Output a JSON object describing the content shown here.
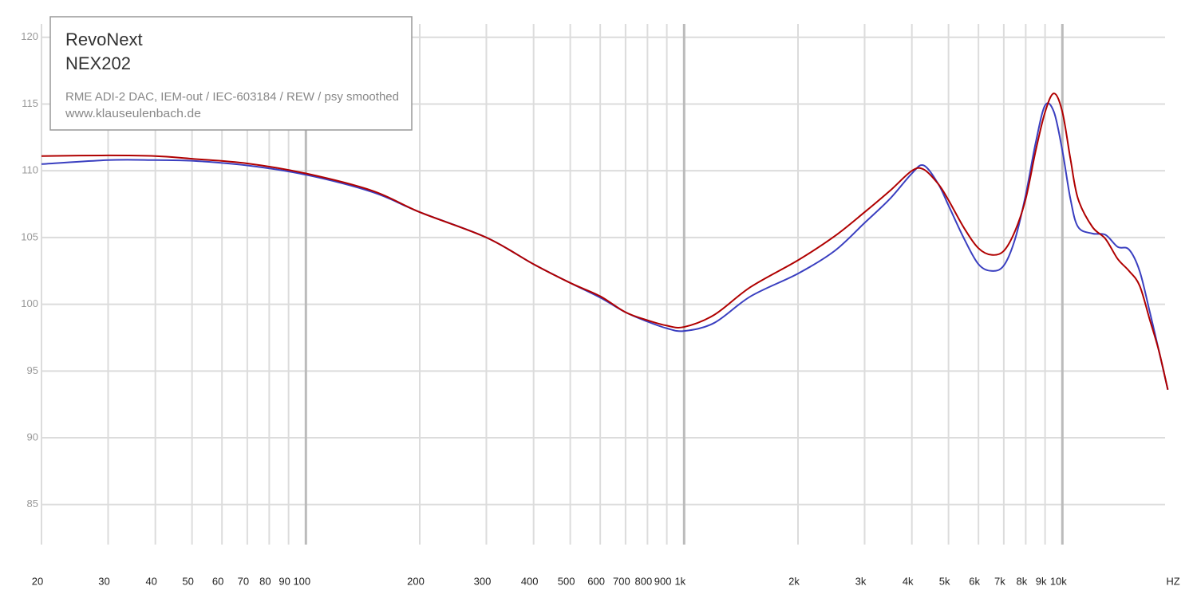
{
  "chart_data": {
    "type": "line",
    "title": "RevoNext",
    "subtitle": "NEX202",
    "annotations": [
      "RME ADI-2 DAC, IEM-out / IEC-603184 / REW / psy smoothed",
      "www.klauseulenbach.de"
    ],
    "x_label": "HZ",
    "log_x": true,
    "grid": true,
    "xlim": [
      20,
      20000
    ],
    "ylim": [
      82,
      121
    ],
    "xticks": [
      20,
      30,
      40,
      50,
      60,
      70,
      80,
      90,
      100,
      200,
      300,
      400,
      500,
      600,
      700,
      800,
      900,
      {
        "value": 1000,
        "label": "1k"
      },
      {
        "value": 2000,
        "label": "2k"
      },
      {
        "value": 3000,
        "label": "3k"
      },
      {
        "value": 4000,
        "label": "4k"
      },
      {
        "value": 5000,
        "label": "5k"
      },
      {
        "value": 6000,
        "label": "6k"
      },
      {
        "value": 7000,
        "label": "7k"
      },
      {
        "value": 8000,
        "label": "8k"
      },
      {
        "value": 9000,
        "label": "9k"
      },
      {
        "value": 10000,
        "label": "10k"
      }
    ],
    "yticks": [
      85,
      90,
      95,
      100,
      105,
      110,
      115,
      120
    ],
    "x": [
      20,
      30,
      40,
      50,
      70,
      100,
      150,
      200,
      300,
      400,
      500,
      600,
      700,
      800,
      900,
      1000,
      1200,
      1500,
      2000,
      2500,
      3000,
      3500,
      4000,
      4300,
      4700,
      5000,
      5500,
      6000,
      6500,
      7000,
      7500,
      8000,
      8500,
      9000,
      9500,
      10000,
      10500,
      11000,
      12000,
      13000,
      14000,
      15000,
      16000,
      17000,
      18000,
      19000
    ],
    "series": [
      {
        "color": "#3a3fc0",
        "values": [
          110.5,
          110.8,
          110.8,
          110.75,
          110.4,
          109.7,
          108.4,
          106.9,
          105.0,
          103.0,
          101.6,
          100.5,
          99.4,
          98.7,
          98.2,
          98.0,
          98.6,
          100.6,
          102.3,
          104.0,
          106.1,
          107.9,
          109.8,
          110.4,
          109.0,
          107.4,
          104.9,
          103.0,
          102.5,
          102.9,
          104.9,
          108.2,
          112.1,
          114.9,
          114.4,
          111.5,
          107.9,
          105.8,
          105.3,
          105.2,
          104.3,
          104.1,
          102.5,
          99.5,
          96.5,
          93.6
        ]
      },
      {
        "color": "#b00000",
        "values": [
          111.1,
          111.15,
          111.1,
          110.9,
          110.55,
          109.8,
          108.5,
          106.9,
          105.0,
          103.0,
          101.6,
          100.6,
          99.4,
          98.8,
          98.4,
          98.3,
          99.2,
          101.3,
          103.3,
          105.1,
          106.9,
          108.5,
          110.0,
          110.1,
          109.0,
          107.8,
          105.7,
          104.2,
          103.7,
          104.0,
          105.5,
          107.9,
          111.5,
          114.4,
          115.8,
          114.4,
          110.9,
          107.9,
          105.8,
          104.9,
          103.4,
          102.5,
          101.4,
          98.9,
          96.5,
          93.6
        ]
      }
    ]
  }
}
